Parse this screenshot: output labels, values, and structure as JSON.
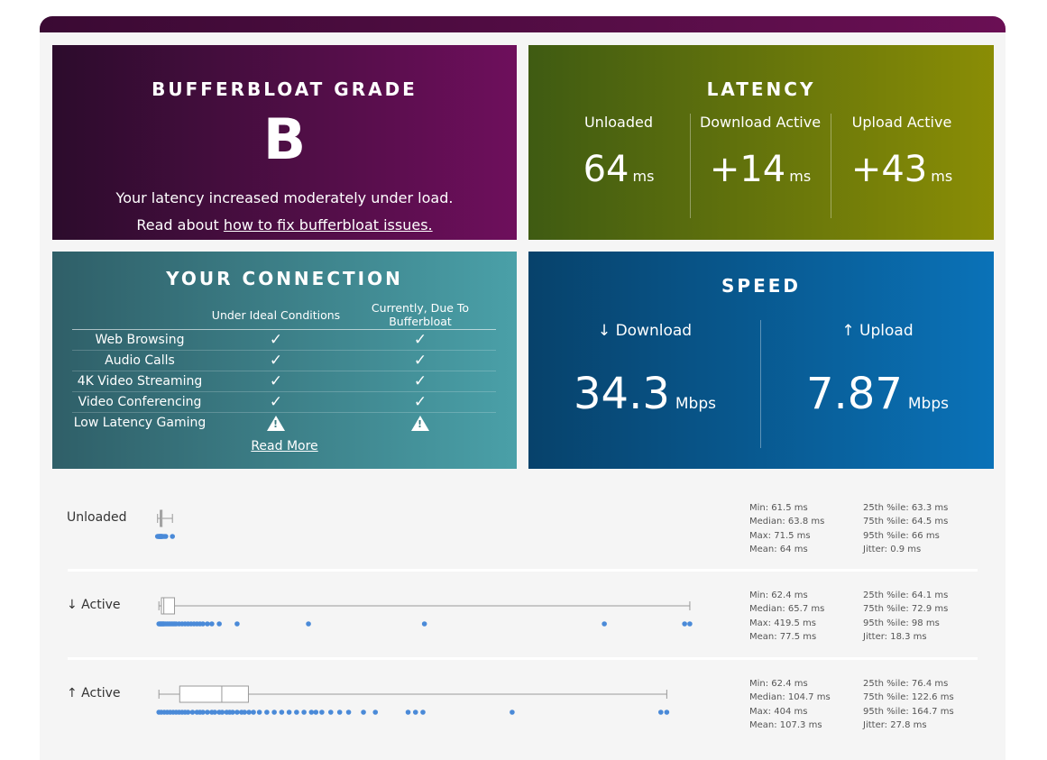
{
  "grade": {
    "title": "BUFFERBLOAT GRADE",
    "letter": "B",
    "line1": "Your latency increased moderately under load.",
    "line2_prefix": "Read about ",
    "line2_link": "how to fix bufferbloat issues."
  },
  "latency": {
    "title": "LATENCY",
    "cols": [
      {
        "label": "Unloaded",
        "value": "64",
        "unit": "ms"
      },
      {
        "label": "Download Active",
        "value": "+14",
        "unit": "ms"
      },
      {
        "label": "Upload Active",
        "value": "+43",
        "unit": "ms"
      }
    ]
  },
  "connection": {
    "title": "YOUR CONNECTION",
    "col_ideal": "Under Ideal Conditions",
    "col_current": "Currently, Due To Bufferbloat",
    "rows": [
      {
        "name": "Web Browsing",
        "ideal": "✓",
        "current": "✓"
      },
      {
        "name": "Audio Calls",
        "ideal": "✓",
        "current": "✓"
      },
      {
        "name": "4K Video Streaming",
        "ideal": "✓",
        "current": "✓"
      },
      {
        "name": "Video Conferencing",
        "ideal": "✓",
        "current": "✓"
      },
      {
        "name": "Low Latency Gaming",
        "ideal": "!",
        "current": "!"
      }
    ],
    "read_more": "Read More"
  },
  "speed": {
    "title": "SPEED",
    "download_label": "↓ Download",
    "download_value": "34.3",
    "download_unit": "Mbps",
    "upload_label": "↑ Upload",
    "upload_value": "7.87",
    "upload_unit": "Mbps"
  },
  "chart_data": {
    "type": "boxplot",
    "xlim_ms": [
      55,
      425
    ],
    "accent": "#4a8ad8",
    "series": [
      {
        "name": "Unloaded",
        "min": 61.5,
        "q1": 63.3,
        "median": 63.8,
        "q3": 64.5,
        "max": 71.5,
        "points": [
          61.5,
          62,
          62.4,
          62.8,
          63,
          63.3,
          63.5,
          63.8,
          64,
          64.2,
          64.5,
          65,
          66,
          67,
          71.5
        ],
        "stats_left": [
          "Min: 61.5 ms",
          "Median: 63.8 ms",
          "Max: 71.5 ms",
          "Mean: 64 ms"
        ],
        "stats_right": [
          "25th %ile: 63.3 ms",
          "75th %ile: 64.5 ms",
          "95th %ile: 66 ms",
          "Jitter: 0.9 ms"
        ]
      },
      {
        "name": "↓ Active",
        "min": 62.4,
        "q1": 64.1,
        "median": 65.7,
        "q3": 72.9,
        "max": 419.5,
        "points": [
          62.4,
          63,
          63.5,
          64,
          64.5,
          65,
          65.5,
          66,
          67,
          68,
          69,
          70,
          71,
          72,
          73,
          74,
          76,
          78,
          80,
          82,
          84,
          86,
          88,
          90,
          92,
          95,
          98,
          103,
          115,
          163,
          241,
          362,
          416,
          419.5
        ],
        "stats_left": [
          "Min: 62.4 ms",
          "Median: 65.7 ms",
          "Max: 419.5 ms",
          "Mean: 77.5 ms"
        ],
        "stats_right": [
          "25th %ile: 64.1 ms",
          "75th %ile: 72.9 ms",
          "95th %ile: 98 ms",
          "Jitter: 18.3 ms"
        ]
      },
      {
        "name": "↑ Active",
        "min": 62.4,
        "q1": 76.4,
        "median": 104.7,
        "q3": 122.6,
        "max": 404,
        "points": [
          62.4,
          64,
          66,
          68,
          70,
          72,
          74,
          76,
          78,
          80,
          82,
          85,
          88,
          90,
          92,
          95,
          98,
          100,
          103,
          105,
          108,
          110,
          112,
          115,
          118,
          120,
          123,
          126,
          130,
          135,
          140,
          145,
          150,
          155,
          160,
          165,
          168,
          172,
          178,
          184,
          190,
          200,
          208,
          230,
          235,
          240,
          300,
          400,
          404
        ],
        "stats_left": [
          "Min: 62.4 ms",
          "Median: 104.7 ms",
          "Max: 404 ms",
          "Mean: 107.3 ms"
        ],
        "stats_right": [
          "25th %ile: 76.4 ms",
          "75th %ile: 122.6 ms",
          "95th %ile: 164.7 ms",
          "Jitter: 27.8 ms"
        ]
      }
    ]
  }
}
